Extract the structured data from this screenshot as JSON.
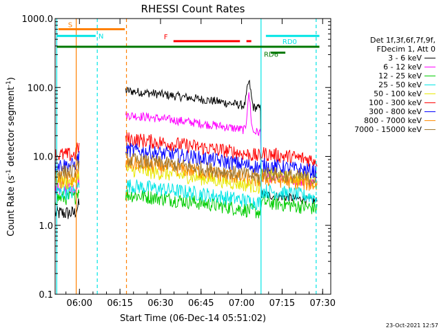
{
  "chart_data": {
    "type": "line",
    "title": "RHESSI Count Rates",
    "xlabel": "Start Time (06-Dec-14 05:51:02)",
    "ylabel_main": "Count Rate (s",
    "ylabel_sup1": "-1",
    "ylabel_mid": " detector segment",
    "ylabel_sup2": "-1",
    "ylabel_end": ")",
    "x_range_min": [
      5.85,
      7.55
    ],
    "y_range": [
      0.1,
      1000
    ],
    "y_scale": "log",
    "x_ticks": [
      {
        "label": "06:00",
        "value": 6.0
      },
      {
        "label": "06:15",
        "value": 6.25
      },
      {
        "label": "06:30",
        "value": 6.5
      },
      {
        "label": "06:45",
        "value": 6.75
      },
      {
        "label": "07:00",
        "value": 7.0
      },
      {
        "label": "07:15",
        "value": 7.25
      },
      {
        "label": "07:30",
        "value": 7.5
      }
    ],
    "y_ticks": [
      {
        "label": "1000.0",
        "value": 1000
      },
      {
        "label": "100.0",
        "value": 100
      },
      {
        "label": "10.0",
        "value": 10
      },
      {
        "label": "1.0",
        "value": 1
      },
      {
        "label": "0.1",
        "value": 0.1
      }
    ],
    "legend_header": [
      "Det 1f,3f,6f,7f,9f,",
      "FDecim 1, Att 0"
    ],
    "series": [
      {
        "name": "3 - 6 keV",
        "color": "#000000",
        "pre": 1.5,
        "post": 2.8,
        "flare": 90
      },
      {
        "name": "6 - 12 keV",
        "color": "#ff00ff",
        "pre": 3.5,
        "post": 5.0,
        "flare": 40
      },
      {
        "name": "12 - 25 keV",
        "color": "#00cc00",
        "pre": 2.5,
        "post": 2.2,
        "flare": 2.8
      },
      {
        "name": "25 - 50 keV",
        "color": "#00e5e5",
        "pre": 3.0,
        "post": 3.2,
        "flare": 3.8
      },
      {
        "name": "50 - 100 keV",
        "color": "#e8e800",
        "pre": 4.2,
        "post": 5.5,
        "flare": 6.5
      },
      {
        "name": "100 - 300 keV",
        "color": "#ff0000",
        "pre": 10.5,
        "post": 11.0,
        "flare": 18
      },
      {
        "name": "300 - 800 keV",
        "color": "#0000ff",
        "pre": 7.5,
        "post": 7.5,
        "flare": 12.5
      },
      {
        "name": "800 - 7000 keV",
        "color": "#ff8c00",
        "pre": 4.8,
        "post": 4.8,
        "flare": 8.0
      },
      {
        "name": "7000 - 15000 keV",
        "color": "#a07830",
        "pre": 6.0,
        "post": 5.8,
        "flare": 9.0
      }
    ],
    "flag_bars": [
      {
        "label": "S",
        "color": "#ff8000",
        "x": [
          5.87,
          6.28
        ],
        "y": 700
      },
      {
        "label": "N",
        "color": "#00e5e5",
        "x": [
          5.86,
          6.1
        ],
        "y": 560
      },
      {
        "label": "F",
        "color": "#ff0000",
        "x": [
          6.58,
          6.99
        ],
        "y": 470
      },
      {
        "label": "",
        "color": "#ff0000",
        "x": [
          7.03,
          7.06
        ],
        "y": 470
      },
      {
        "label": "RD0",
        "color": "#00e5e5",
        "x": [
          7.15,
          7.48
        ],
        "y": 560
      },
      {
        "label": "",
        "color": "#007700",
        "x": [
          5.86,
          7.48
        ],
        "y": 390
      },
      {
        "label": "RD6",
        "color": "#007700",
        "x": [
          7.18,
          7.27
        ],
        "y": 320
      }
    ],
    "vlines": [
      {
        "x": 5.86,
        "color": "#00e5e5",
        "style": "solid"
      },
      {
        "x": 5.98,
        "color": "#ff8000",
        "style": "solid"
      },
      {
        "x": 6.11,
        "color": "#00e5e5",
        "style": "dashed"
      },
      {
        "x": 6.29,
        "color": "#ff8000",
        "style": "dashed"
      },
      {
        "x": 7.12,
        "color": "#00e5e5",
        "style": "solid"
      },
      {
        "x": 7.46,
        "color": "#00e5e5",
        "style": "dashed"
      }
    ]
  },
  "footer": "23-Oct-2021 12:57"
}
